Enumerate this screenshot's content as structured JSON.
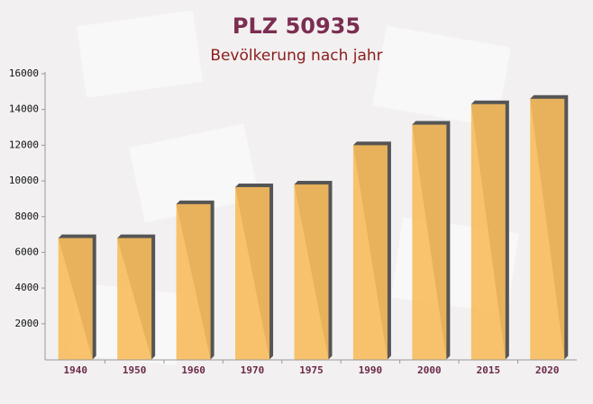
{
  "chart_data": {
    "type": "bar",
    "title": "PLZ 50935",
    "subtitle": "Bevölkerung nach jahr",
    "categories": [
      "1940",
      "1950",
      "1960",
      "1970",
      "1975",
      "1990",
      "2000",
      "2015",
      "2020"
    ],
    "values": [
      6800,
      6800,
      8700,
      9650,
      9800,
      12000,
      13150,
      14300,
      14600
    ],
    "color": "#f7bd5c",
    "ylim": [
      0,
      16000
    ],
    "yticks": [
      2000,
      4000,
      6000,
      8000,
      10000,
      12000,
      14000,
      16000
    ],
    "grid": false
  }
}
